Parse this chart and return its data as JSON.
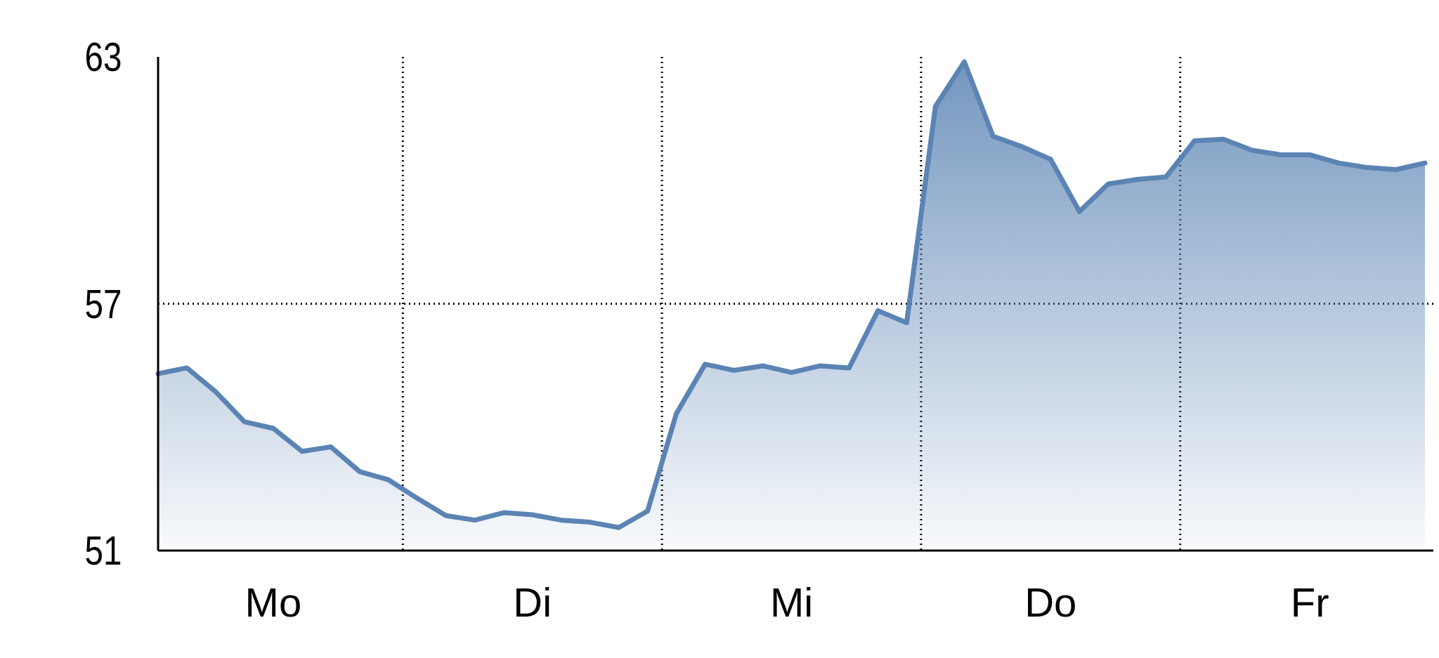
{
  "chart_data": {
    "type": "area",
    "ylim": [
      51,
      63
    ],
    "yticks": [
      51,
      57,
      63
    ],
    "categories": [
      null,
      null,
      null,
      null,
      "Mo",
      null,
      null,
      null,
      null,
      null,
      null,
      null,
      null,
      "Di",
      null,
      null,
      null,
      null,
      null,
      null,
      null,
      null,
      "Mi",
      null,
      null,
      null,
      null,
      null,
      null,
      null,
      null,
      "Do",
      null,
      null,
      null,
      null,
      null,
      null,
      null,
      null,
      "Fr",
      null,
      null,
      null,
      null
    ],
    "grid": "x",
    "marker": "none",
    "line_style": "solid",
    "ref_lines": [
      {
        "axis": "y",
        "value": 57,
        "color": "#000000",
        "line_style": "dotted"
      }
    ],
    "series": [
      {
        "color": "#5b84b4",
        "values": [
          55.3,
          55.44,
          54.86,
          54.13,
          53.97,
          53.41,
          53.52,
          52.92,
          52.72,
          52.27,
          51.85,
          51.74,
          51.92,
          51.87,
          51.74,
          51.69,
          51.56,
          51.96,
          54.33,
          55.53,
          55.38,
          55.49,
          55.33,
          55.49,
          55.44,
          56.83,
          56.54,
          61.8,
          62.88,
          61.07,
          60.82,
          60.51,
          59.24,
          59.91,
          60.02,
          60.08,
          60.96,
          61.0,
          60.73,
          60.62,
          60.62,
          60.42,
          60.31,
          60.26,
          60.42
        ]
      }
    ]
  }
}
